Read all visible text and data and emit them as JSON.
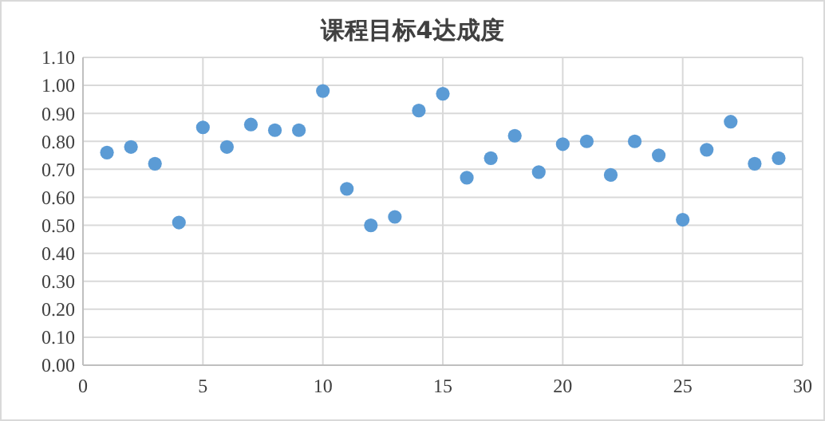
{
  "chart_data": {
    "type": "scatter",
    "title": "课程目标4达成度",
    "x": [
      1,
      2,
      3,
      4,
      5,
      6,
      7,
      8,
      9,
      10,
      11,
      12,
      13,
      14,
      15,
      16,
      17,
      18,
      19,
      20,
      21,
      22,
      23,
      24,
      25,
      26,
      27,
      28,
      29
    ],
    "series": [
      {
        "color": "#5b9bd5",
        "values": [
          0.76,
          0.78,
          0.72,
          0.51,
          0.85,
          0.78,
          0.86,
          0.84,
          0.84,
          0.98,
          0.63,
          0.5,
          0.53,
          0.91,
          0.97,
          0.67,
          0.74,
          0.82,
          0.69,
          0.79,
          0.8,
          0.68,
          0.8,
          0.75,
          0.52,
          0.77,
          0.87,
          0.72,
          0.74
        ]
      }
    ],
    "xlim": [
      0,
      30
    ],
    "xticks": [
      0,
      5,
      10,
      15,
      20,
      25,
      30
    ],
    "ylim": [
      0,
      1.1
    ],
    "yticks": [
      {
        "value": 0,
        "label": "0.00"
      },
      {
        "value": 0.1,
        "label": "0.10"
      },
      {
        "value": 0.2,
        "label": "0.20"
      },
      {
        "value": 0.3,
        "label": "0.30"
      },
      {
        "value": 0.4,
        "label": "0.40"
      },
      {
        "value": 0.5,
        "label": "0.50"
      },
      {
        "value": 0.6,
        "label": "0.60"
      },
      {
        "value": 0.7,
        "label": "0.70"
      },
      {
        "value": 0.8,
        "label": "0.80"
      },
      {
        "value": 0.9,
        "label": "0.90"
      },
      {
        "value": 1,
        "label": "1.00"
      },
      {
        "value": 1.1,
        "label": "1.10"
      }
    ],
    "grid": true,
    "marker": "circle"
  }
}
